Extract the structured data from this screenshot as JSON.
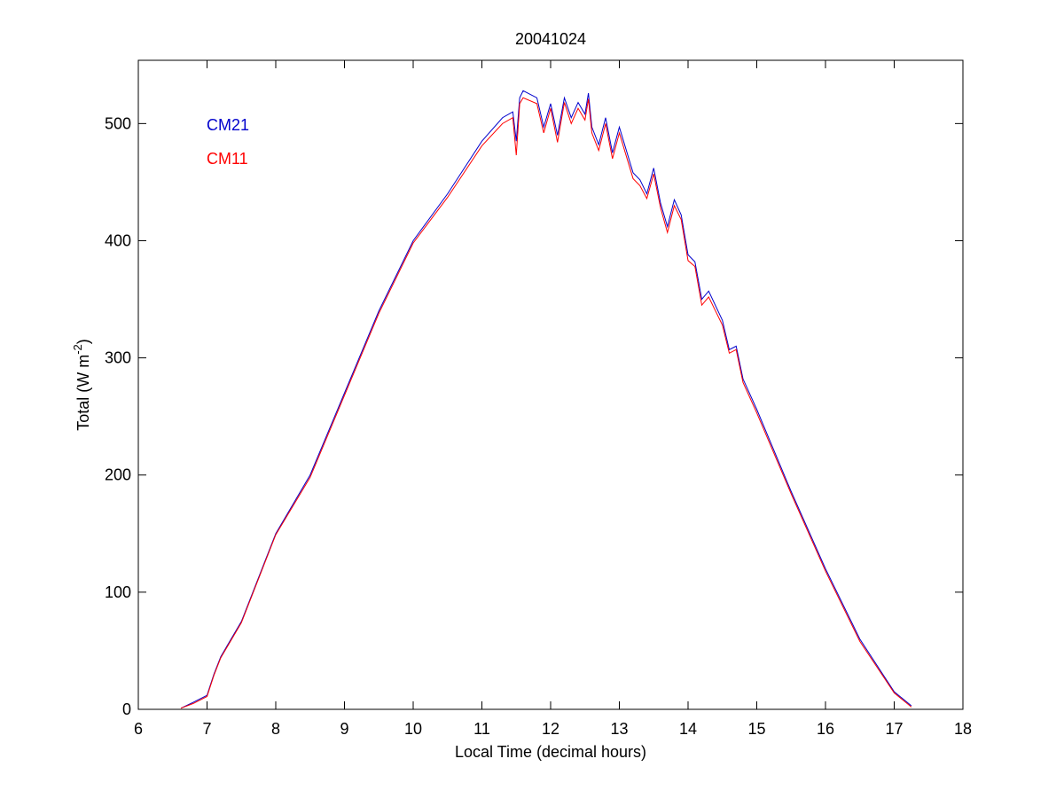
{
  "chart_data": {
    "type": "line",
    "title": "20041024",
    "x_label": "Local Time (decimal hours)",
    "y_label_parts": [
      "Total (W m",
      "-2",
      ")"
    ],
    "x": [
      6.62,
      6.8,
      7.0,
      7.1,
      7.2,
      7.5,
      8.0,
      8.5,
      9.0,
      9.5,
      10.0,
      10.5,
      11.0,
      11.3,
      11.45,
      11.5,
      11.55,
      11.6,
      11.8,
      11.9,
      12.0,
      12.1,
      12.2,
      12.3,
      12.4,
      12.5,
      12.55,
      12.6,
      12.7,
      12.8,
      12.9,
      13.0,
      13.2,
      13.3,
      13.4,
      13.5,
      13.6,
      13.7,
      13.8,
      13.9,
      14.0,
      14.1,
      14.2,
      14.3,
      14.5,
      14.6,
      14.7,
      14.8,
      15.0,
      15.5,
      16.0,
      16.5,
      17.0,
      17.25
    ],
    "series": [
      {
        "name": "CM21",
        "color": "#0000cc",
        "values": [
          1,
          6,
          12,
          30,
          45,
          75,
          150,
          200,
          270,
          340,
          400,
          440,
          485,
          505,
          510,
          485,
          522,
          528,
          522,
          497,
          517,
          490,
          522,
          505,
          518,
          508,
          526,
          497,
          482,
          505,
          475,
          497,
          458,
          452,
          440,
          462,
          432,
          412,
          435,
          422,
          388,
          382,
          350,
          357,
          332,
          307,
          310,
          282,
          256,
          186,
          120,
          60,
          15,
          3
        ]
      },
      {
        "name": "CM11",
        "color": "#ff0000",
        "values": [
          1,
          5,
          11,
          29,
          44,
          74,
          149,
          198,
          268,
          338,
          398,
          437,
          481,
          500,
          505,
          473,
          517,
          522,
          517,
          492,
          513,
          484,
          518,
          500,
          513,
          503,
          521,
          492,
          477,
          500,
          470,
          492,
          453,
          447,
          436,
          457,
          428,
          407,
          430,
          418,
          383,
          378,
          345,
          352,
          328,
          304,
          307,
          279,
          253,
          184,
          118,
          58,
          14,
          2
        ]
      }
    ],
    "xlim": [
      6,
      18
    ],
    "xticks": [
      6,
      7,
      8,
      9,
      10,
      11,
      12,
      13,
      14,
      15,
      16,
      17,
      18
    ],
    "ylim": [
      0,
      554
    ],
    "yticks": [
      0,
      100,
      200,
      300,
      400,
      500
    ],
    "legend": "upper-left",
    "grid": false
  }
}
